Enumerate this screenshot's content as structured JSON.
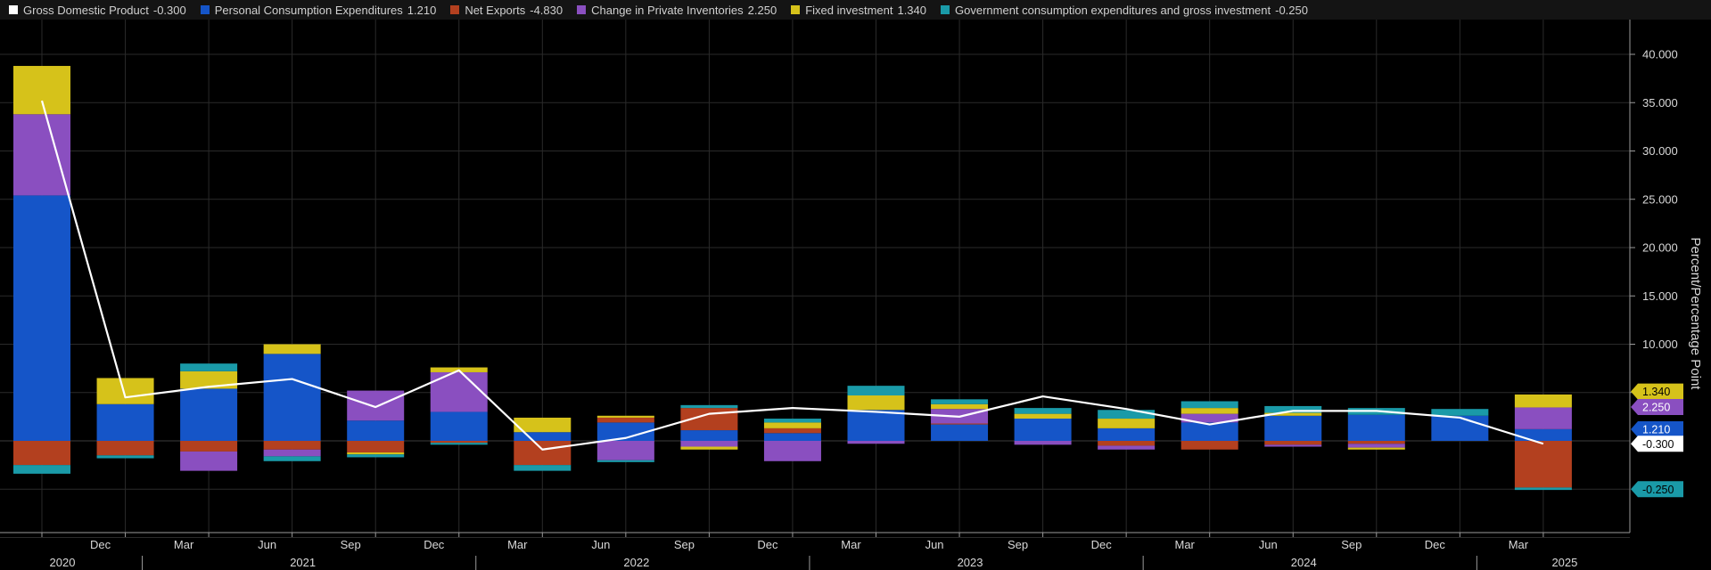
{
  "chart_data": {
    "type": "bar",
    "stacked": true,
    "ylabel": "Percent/Percentage Point",
    "ylim": [
      -10,
      40
    ],
    "y_ticks": [
      5,
      10,
      15,
      20,
      25,
      30,
      35,
      40
    ],
    "y_tick_labels": [
      "",
      "10.000",
      "15.000",
      "20.000",
      "25.000",
      "30.000",
      "35.000",
      "40.000"
    ],
    "grid": true,
    "legend_position": "top",
    "x_axis": {
      "month_labels": [
        "Dec",
        "Mar",
        "Jun",
        "Sep",
        "Dec",
        "Mar",
        "Jun",
        "Sep",
        "Dec",
        "Mar",
        "Jun",
        "Sep",
        "Dec",
        "Mar",
        "Jun",
        "Sep",
        "Dec",
        "Mar"
      ],
      "year_labels": [
        "2020",
        "2021",
        "2022",
        "2023",
        "2024",
        "2025"
      ]
    },
    "line_series": {
      "name": "Gross Domestic Product",
      "legend_value": "-0.300",
      "color": "#ffffff",
      "values": [
        35.2,
        4.5,
        5.6,
        6.4,
        3.5,
        7.3,
        -0.9,
        0.3,
        2.8,
        3.4,
        3.0,
        2.5,
        4.6,
        3.3,
        1.7,
        3.1,
        3.1,
        2.4,
        -0.3
      ]
    },
    "series": [
      {
        "name": "Personal Consumption Expenditures",
        "legend_value": "1.210",
        "color": "#1555c8",
        "values": [
          25.4,
          3.8,
          5.4,
          9.0,
          2.1,
          3.0,
          0.9,
          1.9,
          1.1,
          0.8,
          3.2,
          1.7,
          2.3,
          1.3,
          1.9,
          2.6,
          2.7,
          2.6,
          1.21
        ]
      },
      {
        "name": "Net Exports",
        "legend_value": "-4.830",
        "color": "#b3401f",
        "values": [
          -2.5,
          -1.5,
          -1.1,
          -0.9,
          -1.2,
          -0.2,
          -2.5,
          0.5,
          2.3,
          0.5,
          0.0,
          0.1,
          0.0,
          -0.5,
          -0.9,
          -0.4,
          -0.3,
          0.0,
          -4.83
        ]
      },
      {
        "name": "Change in Private Inventories",
        "legend_value": "2.250",
        "color": "#8a4fc0",
        "values": [
          8.4,
          0.0,
          -2.0,
          -0.7,
          3.1,
          4.1,
          0.0,
          -2.0,
          -0.6,
          -2.1,
          -0.3,
          1.5,
          -0.4,
          -0.4,
          0.9,
          -0.2,
          -0.4,
          0.0,
          2.25
        ]
      },
      {
        "name": "Fixed investment",
        "legend_value": "1.340",
        "color": "#d6c21a",
        "values": [
          5.0,
          2.7,
          1.8,
          1.0,
          -0.2,
          0.5,
          1.5,
          0.2,
          -0.3,
          0.6,
          1.5,
          0.5,
          0.5,
          1.0,
          0.6,
          0.3,
          -0.2,
          0.0,
          1.34
        ]
      },
      {
        "name": "Government consumption expenditures and gross investment",
        "legend_value": "-0.250",
        "color": "#1a9aa8",
        "values": [
          -0.9,
          -0.3,
          0.8,
          -0.5,
          -0.3,
          -0.2,
          -0.6,
          -0.2,
          0.3,
          0.4,
          1.0,
          0.5,
          0.6,
          0.9,
          0.7,
          0.7,
          0.7,
          0.7,
          -0.25
        ]
      }
    ],
    "value_tags": [
      {
        "label": "1.340",
        "value": 5.1,
        "color": "#d6c21a",
        "text_color": "#000000"
      },
      {
        "label": "2.250",
        "value": 3.5,
        "color": "#8a4fc0",
        "text_color": "#ffffff"
      },
      {
        "label": "1.210",
        "value": 1.2,
        "color": "#1555c8",
        "text_color": "#ffffff"
      },
      {
        "label": "-0.300",
        "value": -0.3,
        "color": "#ffffff",
        "text_color": "#000000"
      },
      {
        "label": "-0.250",
        "value": -5.0,
        "color": "#1a9aa8",
        "text_color": "#000000"
      }
    ]
  }
}
